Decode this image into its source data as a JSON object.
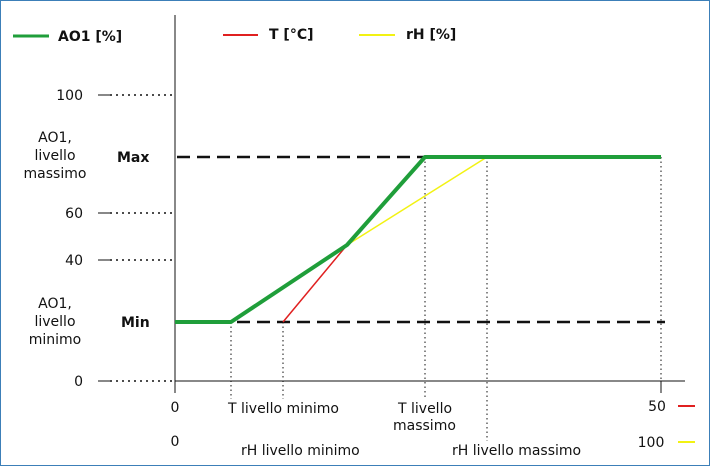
{
  "legend": [
    {
      "label": "AO1 [%]",
      "color": "#1f9e3a"
    },
    {
      "label": "T [°C]",
      "color": "#e02020"
    },
    {
      "label": "rH [%]",
      "color": "#f2f213"
    }
  ],
  "y_axis": {
    "ticks": [
      "100",
      "60",
      "40",
      "0"
    ],
    "max_label": "Max",
    "min_label": "Min",
    "max_range_label": [
      "AO1,",
      "livello",
      "massimo"
    ],
    "min_range_label": [
      "AO1,",
      "livello",
      "minimo"
    ]
  },
  "x_axis_t": {
    "start": "0",
    "min_label": "T livello minimo",
    "max_label": [
      "T livello",
      "massimo"
    ],
    "end": "50",
    "end_color": "#e02020"
  },
  "x_axis_rh": {
    "start": "0",
    "min_label": "rH livello minimo",
    "max_label": "rH  livello massimo",
    "end": "100",
    "end_color": "#f2f213"
  },
  "colors": {
    "ao1": "#1f9e3a",
    "t": "#e02020",
    "rh": "#f2f213",
    "frame": "#3c7fb8"
  }
}
